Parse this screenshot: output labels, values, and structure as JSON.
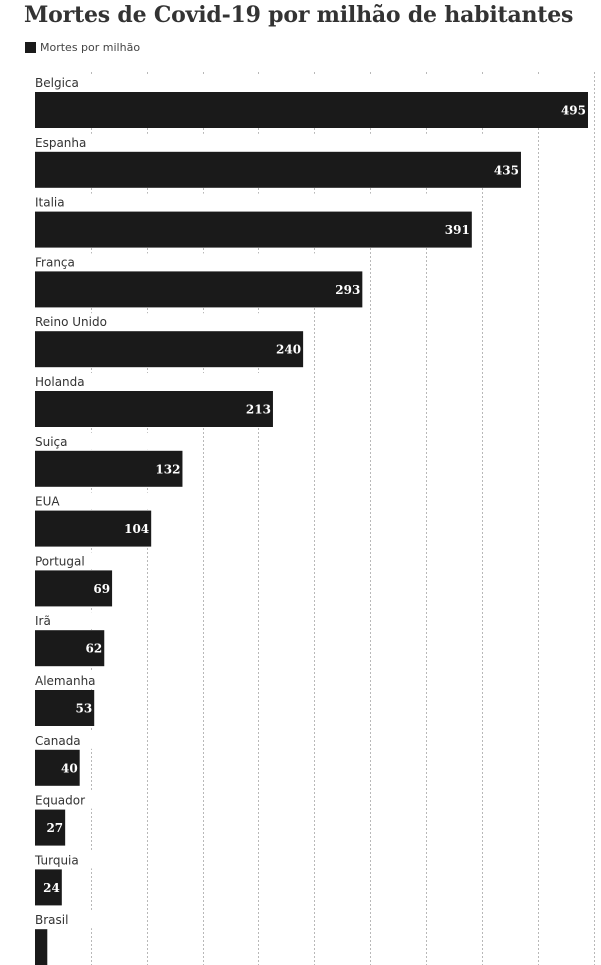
{
  "chart_data": {
    "type": "bar",
    "orientation": "horizontal",
    "title": "Mortes de Covid-19 por milhão de habitantes",
    "legend": [
      {
        "label": "Mortes por milhão",
        "color": "#1a1a1a"
      }
    ],
    "legend_position": "top-left",
    "grid": true,
    "xlim": [
      0,
      500
    ],
    "categories": [
      "Belgica",
      "Espanha",
      "Italia",
      "França",
      "Reino Unido",
      "Holanda",
      "Suiça",
      "EUA",
      "Portugal",
      "Irã",
      "Alemanha",
      "Canada",
      "Equador",
      "Turquia",
      "Brasil"
    ],
    "values": [
      495,
      435,
      391,
      293,
      240,
      213,
      132,
      104,
      69,
      62,
      53,
      40,
      27,
      24,
      11
    ],
    "value_labels": [
      "495",
      "435",
      "391",
      "293",
      "240",
      "213",
      "132",
      "104",
      "69",
      "62",
      "53",
      "40",
      "27",
      "24",
      ""
    ],
    "bar_color": "#1a1a1a"
  }
}
